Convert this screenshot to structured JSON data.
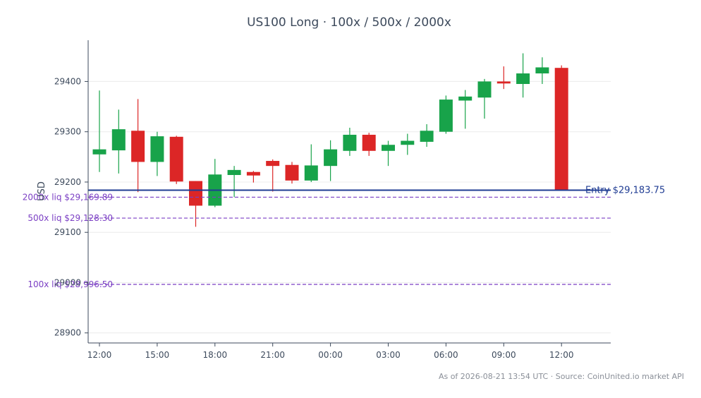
{
  "chart_data": {
    "type": "candlestick",
    "title": "US100 Long · 100x / 500x / 2000x",
    "ylabel": "USD",
    "ylim": [
      28880,
      29482
    ],
    "grid": "horizontal",
    "x_tick_labels": [
      "12:00",
      "15:00",
      "18:00",
      "21:00",
      "00:00",
      "03:00",
      "06:00",
      "09:00",
      "12:00"
    ],
    "y_ticks": [
      28900,
      29000,
      29100,
      29200,
      29300,
      29400
    ],
    "candles": [
      {
        "o": 29255,
        "h": 29382,
        "l": 29220,
        "c": 29265
      },
      {
        "o": 29263,
        "h": 29344,
        "l": 29217,
        "c": 29305
      },
      {
        "o": 29302,
        "h": 29365,
        "l": 29180,
        "c": 29240
      },
      {
        "o": 29240,
        "h": 29300,
        "l": 29212,
        "c": 29291
      },
      {
        "o": 29290,
        "h": 29292,
        "l": 29196,
        "c": 29201
      },
      {
        "o": 29202,
        "h": 29202,
        "l": 29111,
        "c": 29153
      },
      {
        "o": 29153,
        "h": 29246,
        "l": 29150,
        "c": 29215
      },
      {
        "o": 29214,
        "h": 29232,
        "l": 29170,
        "c": 29224
      },
      {
        "o": 29220,
        "h": 29222,
        "l": 29199,
        "c": 29213
      },
      {
        "o": 29242,
        "h": 29245,
        "l": 29181,
        "c": 29232
      },
      {
        "o": 29234,
        "h": 29240,
        "l": 29197,
        "c": 29203
      },
      {
        "o": 29203,
        "h": 29275,
        "l": 29200,
        "c": 29233
      },
      {
        "o": 29232,
        "h": 29283,
        "l": 29202,
        "c": 29265
      },
      {
        "o": 29262,
        "h": 29308,
        "l": 29252,
        "c": 29294
      },
      {
        "o": 29294,
        "h": 29298,
        "l": 29252,
        "c": 29262
      },
      {
        "o": 29262,
        "h": 29282,
        "l": 29232,
        "c": 29274
      },
      {
        "o": 29274,
        "h": 29296,
        "l": 29254,
        "c": 29282
      },
      {
        "o": 29280,
        "h": 29315,
        "l": 29270,
        "c": 29302
      },
      {
        "o": 29300,
        "h": 29372,
        "l": 29296,
        "c": 29364
      },
      {
        "o": 29362,
        "h": 29383,
        "l": 29306,
        "c": 29370
      },
      {
        "o": 29368,
        "h": 29405,
        "l": 29326,
        "c": 29400
      },
      {
        "o": 29400,
        "h": 29430,
        "l": 29385,
        "c": 29396
      },
      {
        "o": 29395,
        "h": 29456,
        "l": 29368,
        "c": 29416
      },
      {
        "o": 29416,
        "h": 29448,
        "l": 29395,
        "c": 29428
      },
      {
        "o": 29427,
        "h": 29432,
        "l": 29183,
        "c": 29184
      }
    ],
    "colors": {
      "up": "#18a34a",
      "down": "#dc2626",
      "entry": "#1f3c93",
      "liq": "#7b3fc4"
    },
    "entry": {
      "value": 29183.75,
      "label": "Entry $29,183.75"
    },
    "liquidations": [
      {
        "value": 29169.89,
        "label": "2000x liq $29,169.89"
      },
      {
        "value": 29128.3,
        "label": "500x liq $29,128.30"
      },
      {
        "value": 28996.5,
        "label": "100x liq $28,996.50"
      }
    ]
  },
  "footer": "As of 2026-08-21 13:54 UTC · Source: CoinUnited.io market API"
}
